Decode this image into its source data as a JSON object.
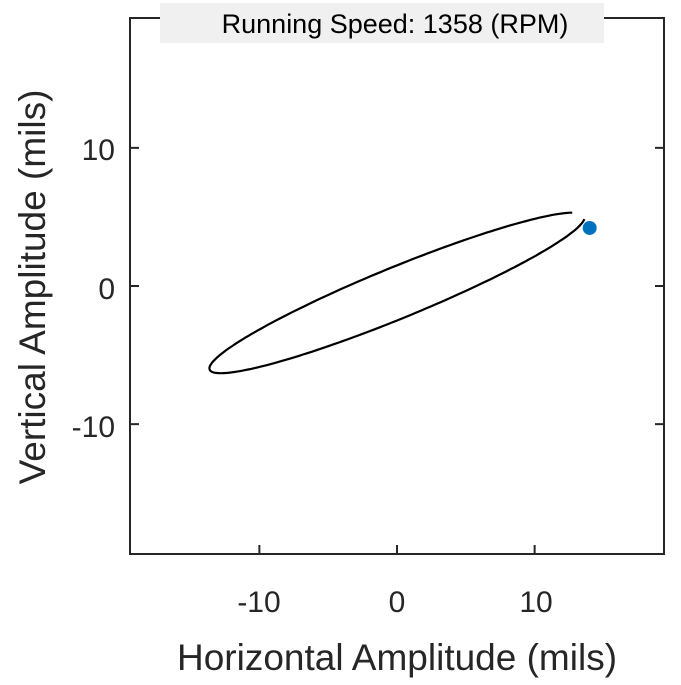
{
  "chart_data": {
    "type": "line",
    "title": "Running Speed: 1358 (RPM)",
    "xlabel": "Horizontal Amplitude (mils)",
    "ylabel": "Vertical Amplitude (mils)",
    "xlim": [
      -19.4,
      19.4
    ],
    "ylim": [
      -19.4,
      19.4
    ],
    "xticks": [
      -10,
      0,
      10
    ],
    "yticks": [
      -10,
      0,
      10
    ],
    "xtick_labels": [
      "-10",
      "0",
      "10"
    ],
    "ytick_labels": [
      "10",
      "0",
      "-10"
    ],
    "grid": false,
    "orbit": {
      "center": [
        0,
        -0.5
      ],
      "semi_major": 14.7,
      "semi_minor": 1.85,
      "angle_deg": 22.2,
      "gap_start_deg": 355,
      "gap_end_deg": 18
    },
    "marker": {
      "x": 14.0,
      "y": 4.2
    },
    "colors": {
      "orbit": "#000000",
      "marker": "#0072BD",
      "axes": "#262626",
      "title_bg": "#f0f0f0"
    }
  }
}
